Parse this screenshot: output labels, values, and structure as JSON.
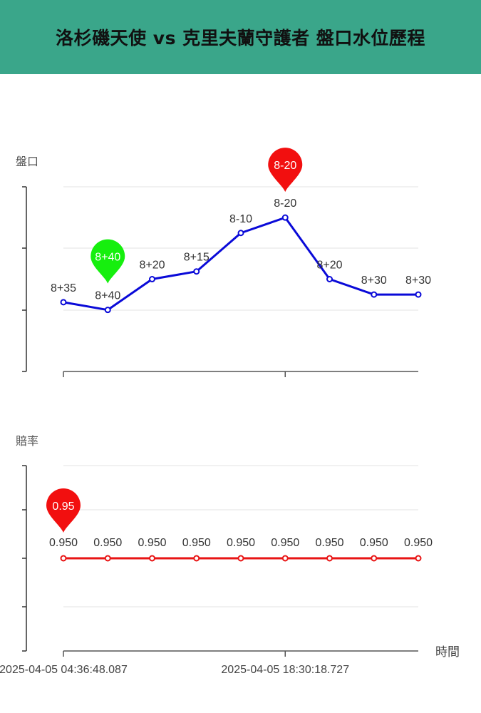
{
  "header": {
    "title": "洛杉磯天使 vs 克里夫蘭守護者 盤口水位歷程",
    "bg_color": "#3aa68a"
  },
  "chart_data": [
    {
      "type": "line",
      "ylabel": "盤口",
      "xlabel": "",
      "grid": true,
      "color": "#0a0ad8",
      "marker": {
        "label": "8-20",
        "index": 5,
        "color": "#f20f0f"
      },
      "marker_min": {
        "label": "8+40",
        "index": 1,
        "color": "#16ef0e"
      },
      "x": [
        "",
        "",
        "",
        "",
        "",
        "",
        "",
        "",
        ""
      ],
      "labels": [
        "8+35",
        "8+40",
        "8+20",
        "8+15",
        "8-10",
        "8-20",
        "8+20",
        "8+30",
        "8+30"
      ],
      "values": [
        -35,
        -40,
        -20,
        -15,
        10,
        20,
        -20,
        -30,
        -30
      ],
      "ylim": [
        -80,
        40
      ]
    },
    {
      "type": "line",
      "ylabel": "賠率",
      "xlabel": "時間",
      "grid": true,
      "color": "#e81414",
      "marker": {
        "label": "0.95",
        "index": 0,
        "color": "#f20f0f"
      },
      "x_tick_labels": [
        "2025-04-05 04:36:48.087",
        "2025-04-05 18:30:18.727"
      ],
      "labels": [
        "0.950",
        "0.950",
        "0.950",
        "0.950",
        "0.950",
        "0.950",
        "0.950",
        "0.950",
        "0.950"
      ],
      "values": [
        0.95,
        0.95,
        0.95,
        0.95,
        0.95,
        0.95,
        0.95,
        0.95,
        0.95
      ],
      "ylim": [
        0.9,
        1.0
      ]
    }
  ]
}
